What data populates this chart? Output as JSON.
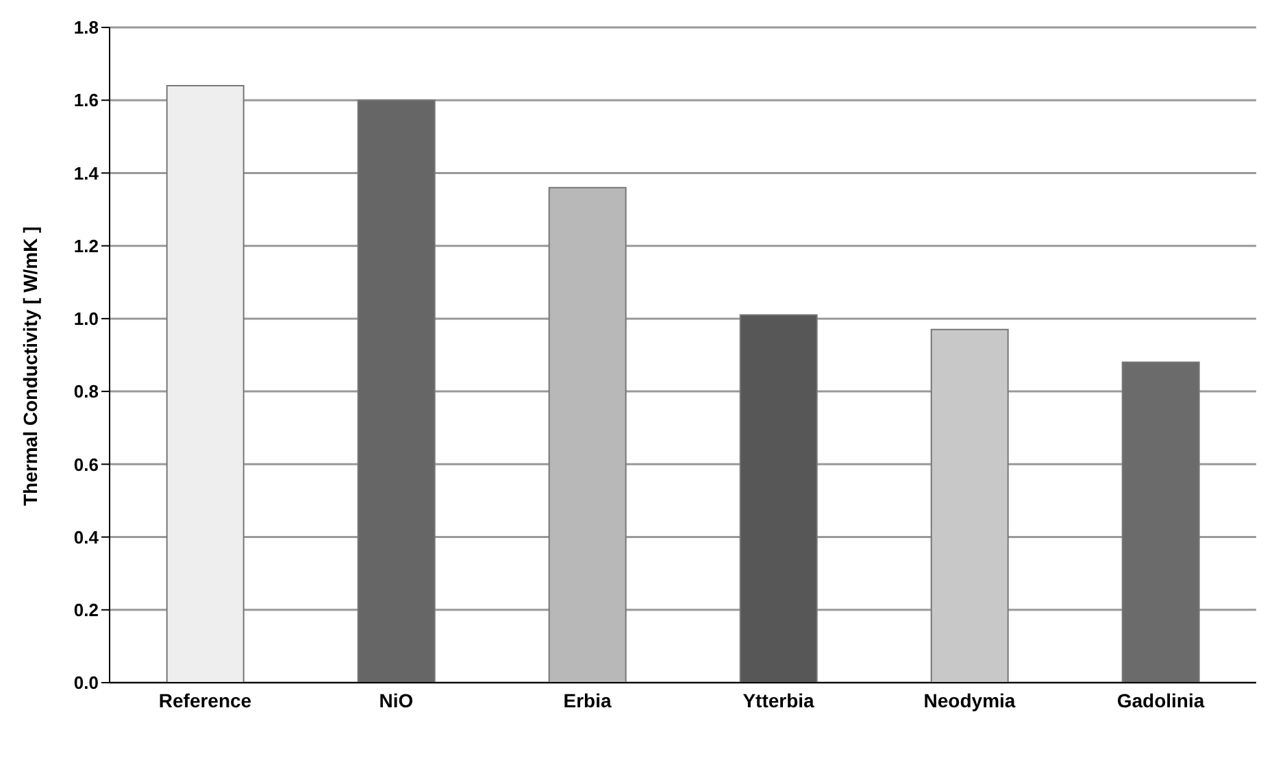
{
  "chart_data": {
    "type": "bar",
    "ylabel": "Thermal Conductivity  [ W/mK ]",
    "categories": [
      "Reference",
      "NiO",
      "Erbia",
      "Ytterbia",
      "Neodymia",
      "Gadolinia"
    ],
    "values": [
      1.64,
      1.6,
      1.36,
      1.01,
      0.97,
      0.88
    ],
    "colors": [
      "#eeeeee",
      "#666666",
      "#b8b8b8",
      "#575757",
      "#c8c8c8",
      "#6b6b6b"
    ],
    "ylim": [
      0,
      1.8
    ],
    "yticks": [
      {
        "value": 0,
        "label": "0.0"
      },
      0.2,
      0.4,
      0.6,
      0.8,
      {
        "value": 1,
        "label": "1.0"
      },
      1.2,
      1.4,
      1.6,
      1.8
    ],
    "grid": "y"
  }
}
